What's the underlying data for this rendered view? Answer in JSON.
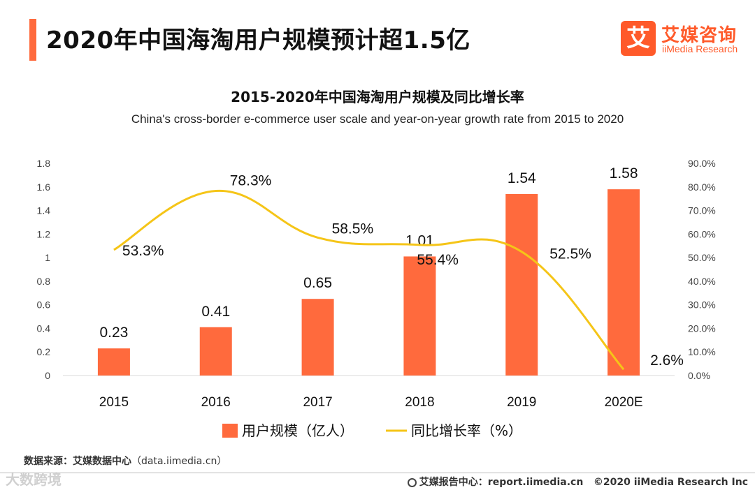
{
  "header": {
    "title": "2020年中国海淘用户规模预计超1.5亿",
    "accent_color": "#ff6a3d"
  },
  "logo": {
    "mark": "艾",
    "name_cn": "艾媒咨询",
    "name_en": "iiMedia Research",
    "color": "#ff5a2a"
  },
  "chart_data": {
    "type": "bar",
    "title": "2015-2020年中国海淘用户规模及同比增长率",
    "subtitle": "China's cross-border e-commerce user scale and year-on-year growth rate from 2015 to 2020",
    "categories": [
      "2015",
      "2016",
      "2017",
      "2018",
      "2019",
      "2020E"
    ],
    "ylim": [
      0,
      1.8
    ],
    "y_ticks": [
      "0",
      "0.2",
      "0.4",
      "0.6",
      "0.8",
      "1",
      "1.2",
      "1.4",
      "1.6",
      "1.8"
    ],
    "y2lim": [
      0,
      90
    ],
    "y2_ticks": [
      "0.0%",
      "10.0%",
      "20.0%",
      "30.0%",
      "40.0%",
      "50.0%",
      "60.0%",
      "70.0%",
      "80.0%",
      "90.0%"
    ],
    "grid": false,
    "legend_position": "bottom",
    "series": [
      {
        "name": "用户规模（亿人）",
        "type": "bar",
        "axis": "left",
        "color": "#ff6a3d",
        "values": [
          0.23,
          0.41,
          0.65,
          1.01,
          1.54,
          1.58
        ],
        "labels": [
          "0.23",
          "0.41",
          "0.65",
          "1.01",
          "1.54",
          "1.58"
        ]
      },
      {
        "name": "同比增长率（%）",
        "type": "line",
        "axis": "right",
        "color": "#f5c518",
        "values": [
          53.3,
          78.3,
          58.5,
          55.4,
          52.5,
          2.6
        ],
        "labels": [
          "53.3%",
          "78.3%",
          "58.5%",
          "55.4%",
          "52.5%",
          "2.6%"
        ]
      }
    ]
  },
  "footer": {
    "source_label": "数据来源：艾媒数据中心",
    "source_url": "（data.iimedia.cn）",
    "report_center": "艾媒报告中心：report.iimedia.cn",
    "copyright": "©2020  iiMedia Research  Inc",
    "watermark": "大数跨境"
  }
}
